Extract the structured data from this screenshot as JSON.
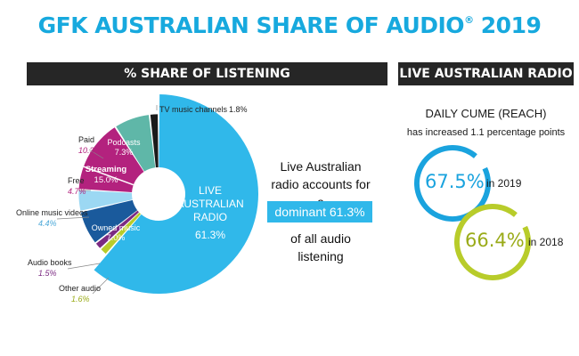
{
  "title": {
    "main": "GFK AUSTRALIAN SHARE OF AUDIO",
    "registered": "®",
    "year": "2019"
  },
  "left_panel": {
    "header": "% SHARE OF LISTENING"
  },
  "callout": {
    "line1": "Live Australian",
    "line2": "radio accounts for a",
    "highlight": "dominant 61.3%",
    "line3": "of all audio",
    "line4": "listening"
  },
  "right_panel": {
    "header": "LIVE AUSTRALIAN RADIO",
    "subtitle": "DAILY CUME (REACH)",
    "note": "has increased 1.1 percentage points",
    "stats": [
      {
        "value": "67.5%",
        "year": "in 2019",
        "fraction": 0.93,
        "color": "#1aa3de"
      },
      {
        "value": "66.4%",
        "year": "in 2018",
        "fraction": 0.93,
        "color": "#b8cc2a"
      }
    ]
  },
  "chart_data": {
    "type": "pie",
    "variant": "donut",
    "slices": [
      {
        "name": "LIVE AUSTRALIAN RADIO",
        "value": 61.3,
        "label": "61.3%",
        "color": "#30b8ea"
      },
      {
        "name": "Other audio",
        "value": 1.6,
        "label": "1.6%",
        "color": "#b8cc2a"
      },
      {
        "name": "Audio books",
        "value": 1.5,
        "label": "1.5%",
        "color": "#7b2a82"
      },
      {
        "name": "Owned music",
        "value": 7.0,
        "label": "7.0%",
        "color": "#1a5a9c"
      },
      {
        "name": "Online music videos",
        "value": 4.4,
        "label": "4.4%",
        "color": "#9cd8f3"
      },
      {
        "name": "Streaming",
        "value": 15.0,
        "label": "15.0%",
        "color": "#b3227e",
        "sub": [
          {
            "name": "Free",
            "value": 4.7,
            "label": "4.7%"
          },
          {
            "name": "Paid",
            "value": 10.3,
            "label": "10.3%"
          }
        ]
      },
      {
        "name": "Podcasts",
        "value": 7.3,
        "label": "7.3%",
        "color": "#5fb7a8"
      },
      {
        "name": "TV music channels",
        "value": 1.8,
        "label": "1.8%",
        "color": "#1a1a1a"
      }
    ]
  }
}
